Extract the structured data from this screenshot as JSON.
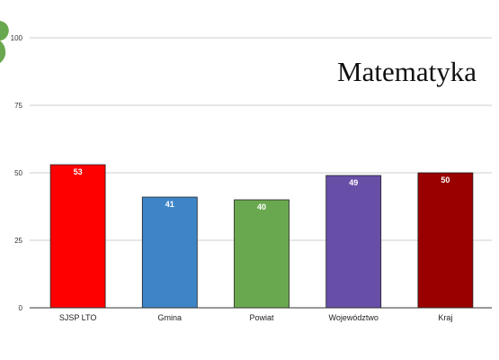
{
  "chart_data": {
    "type": "bar",
    "title": "Matematyka",
    "xlabel": "",
    "ylabel": "",
    "categories": [
      "SJSP LTO",
      "Gmina",
      "Powiat",
      "Województwo",
      "Kraj"
    ],
    "values": [
      53,
      41,
      40,
      49,
      50
    ],
    "data_labels": [
      "53",
      "41",
      "40",
      "49",
      "50"
    ],
    "bar_colors": [
      "#ff0000",
      "#3d85c6",
      "#6aa84f",
      "#674ea7",
      "#990000"
    ],
    "ylim": [
      0,
      100
    ],
    "yticks": [
      0,
      25,
      50,
      75,
      100
    ],
    "ytick_labels": [
      "0",
      "25",
      "50",
      "75",
      "100"
    ],
    "grid": true,
    "legend": "none"
  },
  "logo": {
    "color": "#6aa84f",
    "icon": "green-logo-fragment-icon"
  }
}
